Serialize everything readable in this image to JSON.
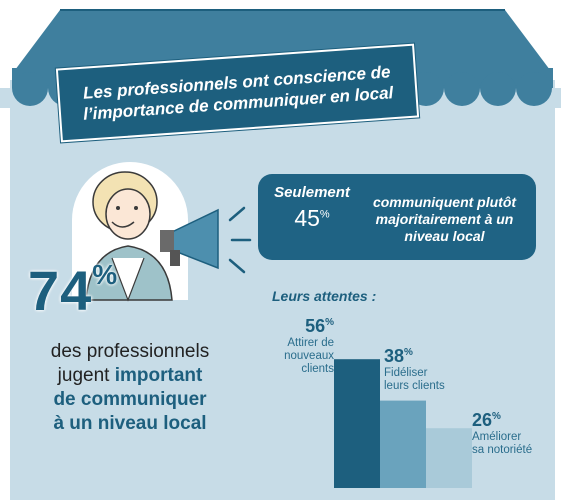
{
  "title": "Les professionnels ont conscience de\nl’importance de communiquer en local",
  "callout": {
    "keyword": "Seulement",
    "value": "45",
    "percent_sign": "%",
    "text": "communiquent plutôt majoritairement à un niveau local"
  },
  "headline": {
    "value": "74",
    "percent_sign": "%",
    "text_plain_1": "des professionnels",
    "text_plain_2": "jugent",
    "text_bold_1": "important",
    "text_bold_2": "de communiquer",
    "text_bold_3": "à un niveau local"
  },
  "expectations": {
    "heading": "Leurs attentes :",
    "items": [
      {
        "value": "56",
        "percent_sign": "%",
        "label": "Attirer de\nnouveaux\nclients",
        "pct": 56
      },
      {
        "value": "38",
        "percent_sign": "%",
        "label": "Fidéliser\nleurs clients",
        "pct": 38
      },
      {
        "value": "26",
        "percent_sign": "%",
        "label": "Améliorer\nsa notoriété",
        "pct": 26
      }
    ]
  },
  "colors": {
    "awning": "#3f7f9e",
    "panel": "#c7dce7",
    "dark_blue": "#1d5f7e",
    "bar_1": "#1d5f7e",
    "bar_2": "#6aa3bd",
    "bar_3": "#a9cad9"
  },
  "icons": [
    "awning-icon",
    "woman-illustration-icon",
    "megaphone-icon",
    "sound-lines-icon"
  ]
}
